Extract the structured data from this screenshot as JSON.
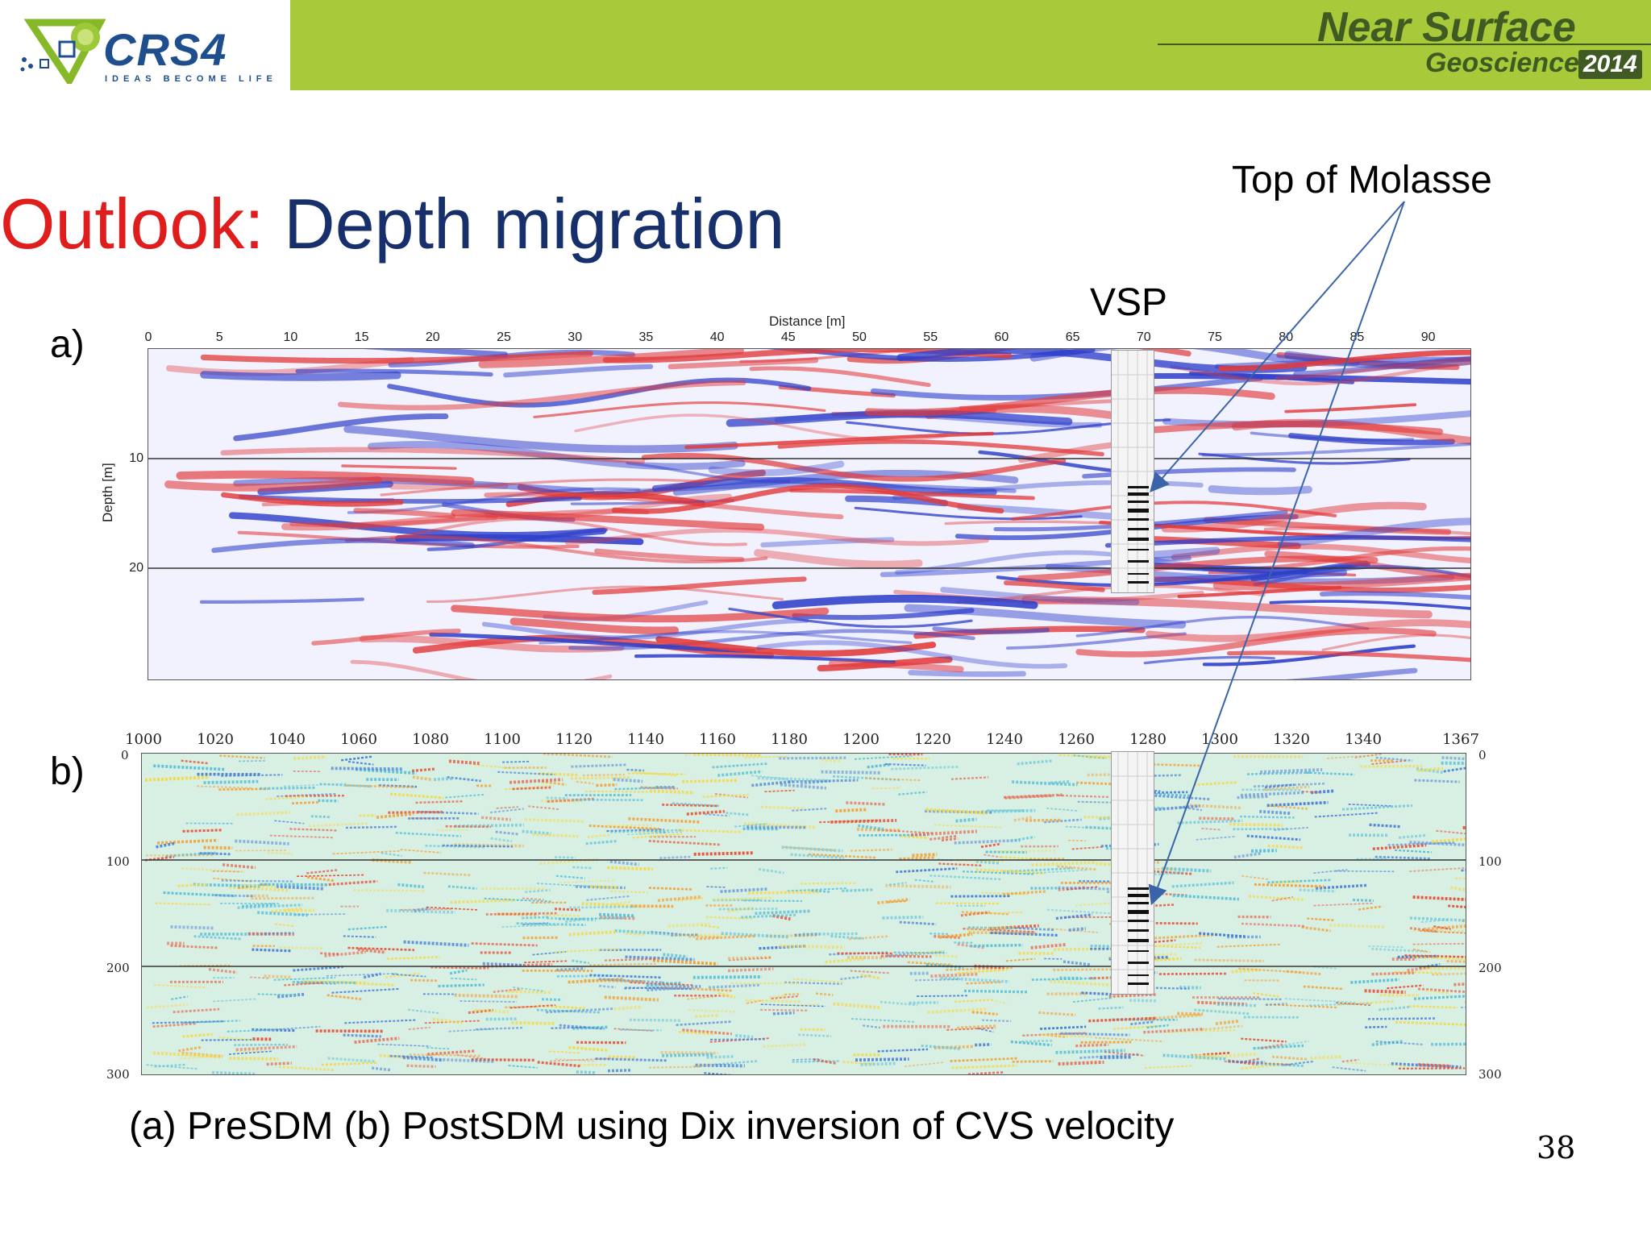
{
  "header": {
    "logo_text": "CRS4",
    "logo_tagline": "IDEAS BECOME LIFE",
    "event_title": "Near Surface",
    "event_subtitle": "Geoscience",
    "event_year": "2014",
    "band_color": "#a8c93a"
  },
  "title": {
    "prefix": "Outlook:",
    "main": " Depth migration",
    "prefix_color": "#e01d1d",
    "main_color": "#17306b"
  },
  "panel_a": {
    "label": "a)",
    "xlabel": "Distance [m]",
    "ylabel": "Depth [m]",
    "x_ticks": [
      "0",
      "5",
      "10",
      "15",
      "20",
      "25",
      "30",
      "35",
      "40",
      "45",
      "50",
      "55",
      "60",
      "65",
      "70",
      "75",
      "80",
      "85",
      "90"
    ],
    "y_ticks": [
      "10",
      "20"
    ]
  },
  "panel_b": {
    "label": "b)",
    "x_ticks": [
      "1000",
      "1020",
      "1040",
      "1060",
      "1080",
      "1100",
      "1120",
      "1140",
      "1160",
      "1180",
      "1200",
      "1220",
      "1240",
      "1260",
      "1280",
      "1300",
      "1320",
      "1340",
      "1367"
    ],
    "y_ticks": [
      "0",
      "100",
      "200",
      "300"
    ]
  },
  "annotations": {
    "vsp": "VSP",
    "top_molasse": "Top of Molasse"
  },
  "caption": "(a) PreSDM (b) PostSDM using Dix inversion of CVS velocity",
  "page_number": "38"
}
